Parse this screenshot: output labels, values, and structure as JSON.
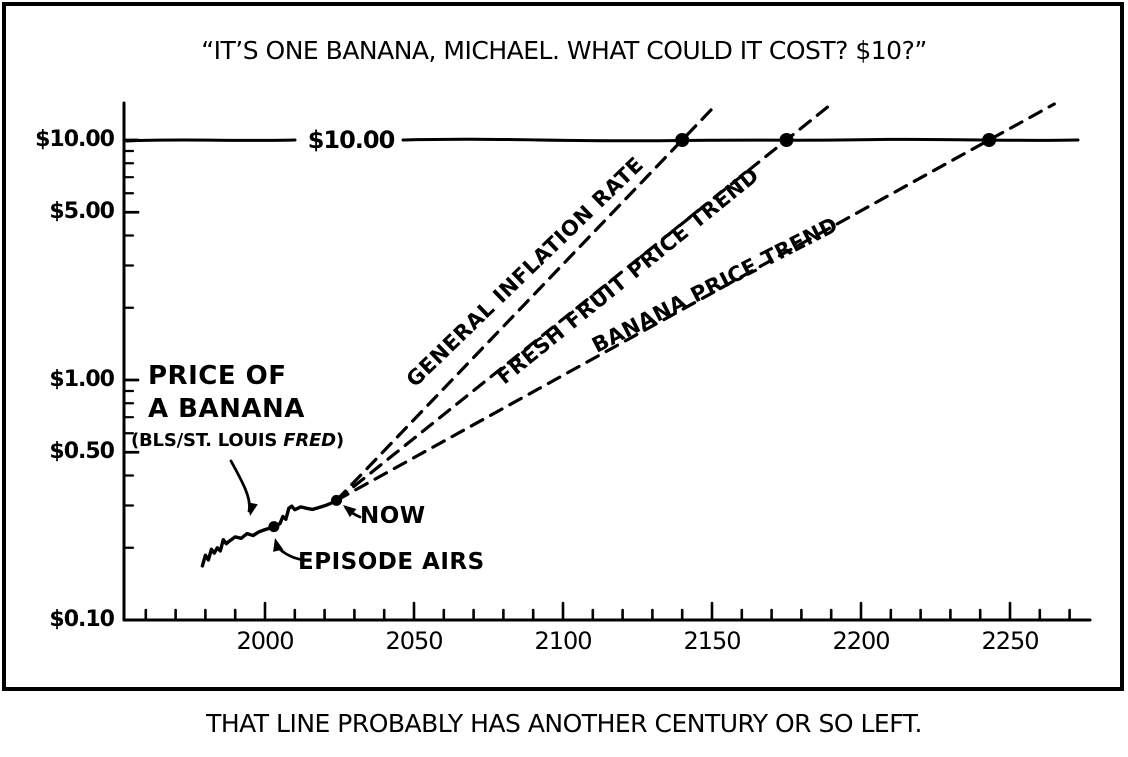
{
  "title": "“IT’S ONE BANANA, MICHAEL. WHAT COULD IT COST? $10?”",
  "caption": "THAT LINE PROBABLY HAS ANOTHER CENTURY OR SO LEFT.",
  "reference_label": "$10.00",
  "annotations": {
    "price_line1": "PRICE OF",
    "price_line2": "A BANANA",
    "source_prefix": "(BLS/ST. LOUIS ",
    "source_name": "FRED",
    "source_suffix": ")",
    "now": "NOW",
    "episode_airs": "EPISODE AIRS"
  },
  "colors": {
    "ink": "#000000",
    "paper": "#ffffff"
  },
  "chart_data": {
    "type": "line",
    "title": "“IT’S ONE BANANA, MICHAEL. WHAT COULD IT COST? $10?”",
    "xlabel": "",
    "ylabel": "",
    "x_axis": {
      "range": [
        1958,
        2282
      ],
      "minor_tick_step": 10,
      "major_tick_step": 50,
      "ticks": [
        2000,
        2050,
        2100,
        2150,
        2200,
        2250
      ]
    },
    "y_axis": {
      "scale": "log",
      "range": [
        0.1,
        14
      ],
      "ticks": [
        {
          "value": 10,
          "label": "$10.00"
        },
        {
          "value": 5,
          "label": "$5.00"
        },
        {
          "value": 1,
          "label": "$1.00"
        },
        {
          "value": 0.5,
          "label": "$0.50"
        },
        {
          "value": 0.1,
          "label": "$0.10"
        }
      ],
      "minor_ticks": [
        9,
        8,
        7,
        6,
        4,
        3,
        2,
        0.9,
        0.8,
        0.7,
        0.6,
        0.4,
        0.3,
        0.2
      ]
    },
    "reference_line": {
      "value": 10,
      "label": "$10.00"
    },
    "series": [
      {
        "name": "PRICE OF A BANANA (BLS/ST. LOUIS FRED)",
        "style": "solid",
        "points": [
          [
            1979,
            0.168
          ],
          [
            1980,
            0.186
          ],
          [
            1981,
            0.178
          ],
          [
            1982,
            0.197
          ],
          [
            1983,
            0.19
          ],
          [
            1984,
            0.2
          ],
          [
            1985,
            0.194
          ],
          [
            1986,
            0.216
          ],
          [
            1987,
            0.208
          ],
          [
            1988,
            0.213
          ],
          [
            1990,
            0.222
          ],
          [
            1992,
            0.219
          ],
          [
            1994,
            0.229
          ],
          [
            1996,
            0.225
          ],
          [
            1998,
            0.233
          ],
          [
            2000,
            0.238
          ],
          [
            2002,
            0.242
          ],
          [
            2003,
            0.245
          ],
          [
            2005,
            0.252
          ],
          [
            2006,
            0.27
          ],
          [
            2007,
            0.263
          ],
          [
            2008,
            0.292
          ],
          [
            2009,
            0.298
          ],
          [
            2010,
            0.288
          ],
          [
            2012,
            0.296
          ],
          [
            2014,
            0.292
          ],
          [
            2016,
            0.289
          ],
          [
            2018,
            0.294
          ],
          [
            2020,
            0.299
          ],
          [
            2022,
            0.306
          ],
          [
            2024,
            0.315
          ]
        ]
      },
      {
        "name": "GENERAL INFLATION RATE",
        "style": "dashed",
        "start": [
          2024,
          0.315
        ],
        "crosses_ten_at": 2140
      },
      {
        "name": "FRESH FRUIT PRICE TREND",
        "style": "dashed",
        "start": [
          2024,
          0.315
        ],
        "crosses_ten_at": 2175
      },
      {
        "name": "BANANA PRICE TREND",
        "style": "dashed",
        "start": [
          2024,
          0.315
        ],
        "crosses_ten_at": 2243
      }
    ],
    "markers": [
      {
        "label": "EPISODE AIRS",
        "year": 2003,
        "price": 0.245
      },
      {
        "label": "NOW",
        "year": 2024,
        "price": 0.315
      },
      {
        "label": "GENERAL INFLATION RATE reaches $10",
        "year": 2140,
        "price": 10
      },
      {
        "label": "FRESH FRUIT PRICE TREND reaches $10",
        "year": 2175,
        "price": 10
      },
      {
        "label": "BANANA PRICE TREND reaches $10",
        "year": 2243,
        "price": 10
      }
    ]
  }
}
